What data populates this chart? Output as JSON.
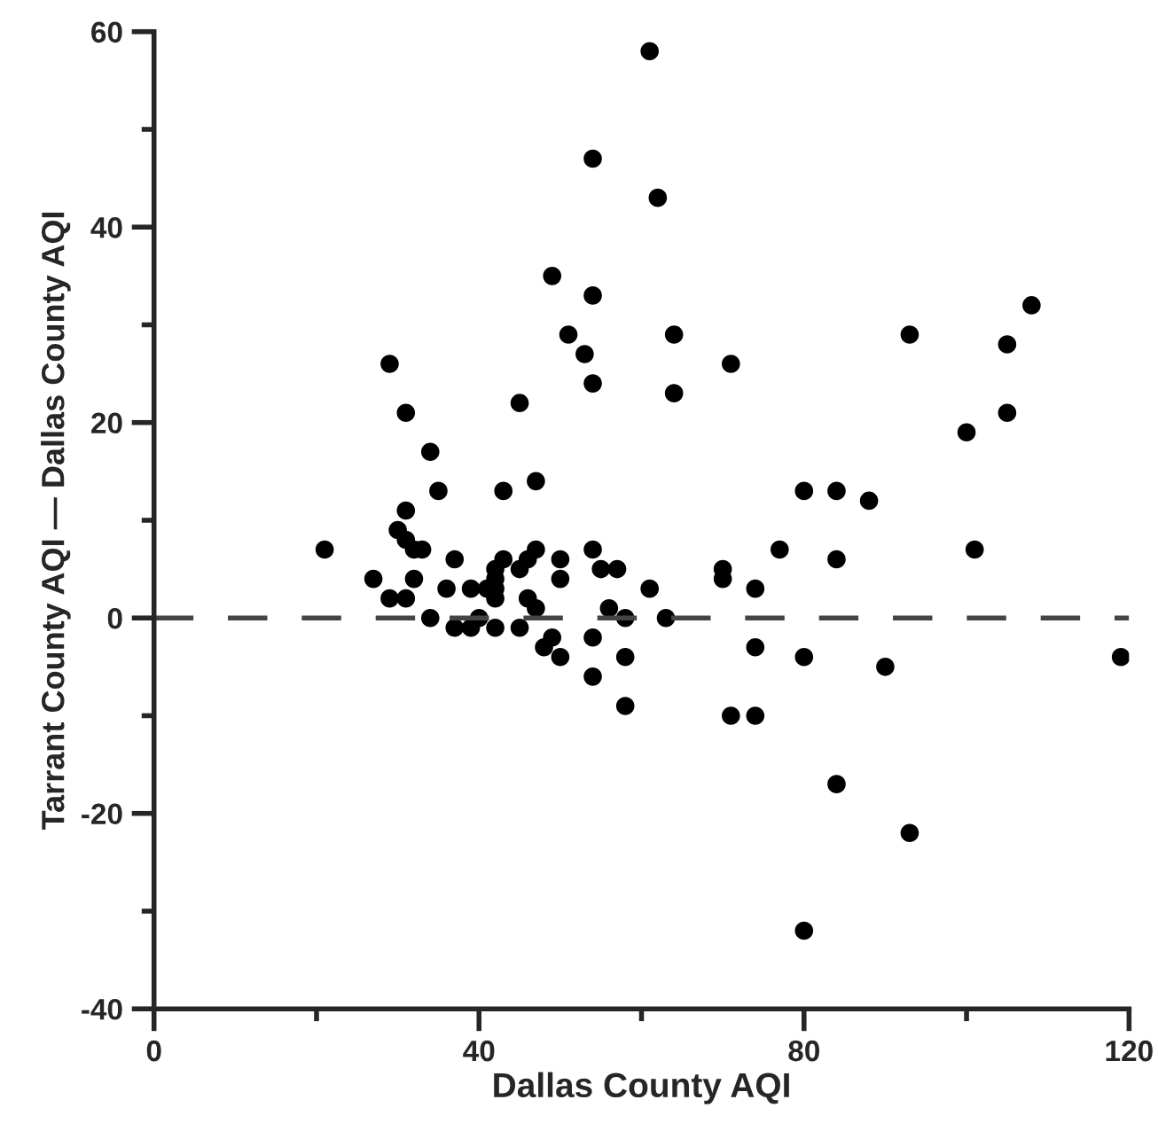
{
  "chart_data": {
    "type": "scatter",
    "xlabel": "Dallas County AQI",
    "ylabel": "Tarrant County AQI — Dallas County AQI",
    "xlim": [
      0,
      120
    ],
    "ylim": [
      -40,
      60
    ],
    "xticks": [
      0,
      {
        "value": 20,
        "label": null
      },
      40,
      {
        "value": 60,
        "label": null
      },
      80,
      {
        "value": 100,
        "label": null
      },
      120
    ],
    "yticks": [
      -40,
      {
        "value": -30,
        "label": null
      },
      -20,
      {
        "value": -10,
        "label": null
      },
      0,
      {
        "value": 10,
        "label": null
      },
      20,
      {
        "value": 30,
        "label": null
      },
      40,
      {
        "value": 50,
        "label": null
      },
      60
    ],
    "grid": false,
    "marker": "circle",
    "ref_lines": [
      {
        "axis": "y",
        "value": 0,
        "label": null,
        "color": "#444444",
        "line_style": "dashed"
      }
    ],
    "series": [
      {
        "color": "#000000",
        "x": [
          21,
          29,
          31,
          34,
          35,
          31,
          30,
          31,
          32,
          33,
          27,
          32,
          29,
          31,
          34,
          37,
          36,
          37,
          39,
          39,
          40,
          43,
          42,
          42,
          41,
          42,
          42,
          42,
          43,
          45,
          47,
          45,
          46,
          47,
          46,
          47,
          45,
          49,
          48,
          50,
          50,
          50,
          49,
          51,
          53,
          54,
          54,
          54,
          55,
          57,
          56,
          54,
          54,
          58,
          58,
          58,
          61,
          54,
          62,
          64,
          64,
          71,
          80,
          84,
          88,
          93,
          108,
          105,
          105,
          100,
          61,
          63,
          70,
          70,
          71,
          74,
          74,
          74,
          77,
          80,
          80,
          84,
          84,
          90,
          93,
          101,
          119
        ],
        "values": [
          7,
          26,
          21,
          17,
          13,
          11,
          9,
          8,
          7,
          7,
          4,
          4,
          2,
          2,
          0,
          6,
          3,
          -1,
          3,
          -1,
          0,
          6,
          5,
          4,
          3,
          3,
          2,
          -1,
          13,
          22,
          14,
          5,
          6,
          7,
          2,
          1,
          -1,
          -2,
          -3,
          6,
          4,
          -4,
          35,
          29,
          27,
          33,
          24,
          7,
          5,
          5,
          1,
          -2,
          -6,
          0,
          -4,
          -9,
          58,
          47,
          43,
          29,
          23,
          26,
          13,
          13,
          12,
          29,
          32,
          28,
          21,
          19,
          3,
          0,
          5,
          4,
          -10,
          -10,
          3,
          -3,
          7,
          -4,
          -32,
          6,
          -17,
          -5,
          -22,
          7,
          -4
        ]
      }
    ]
  }
}
